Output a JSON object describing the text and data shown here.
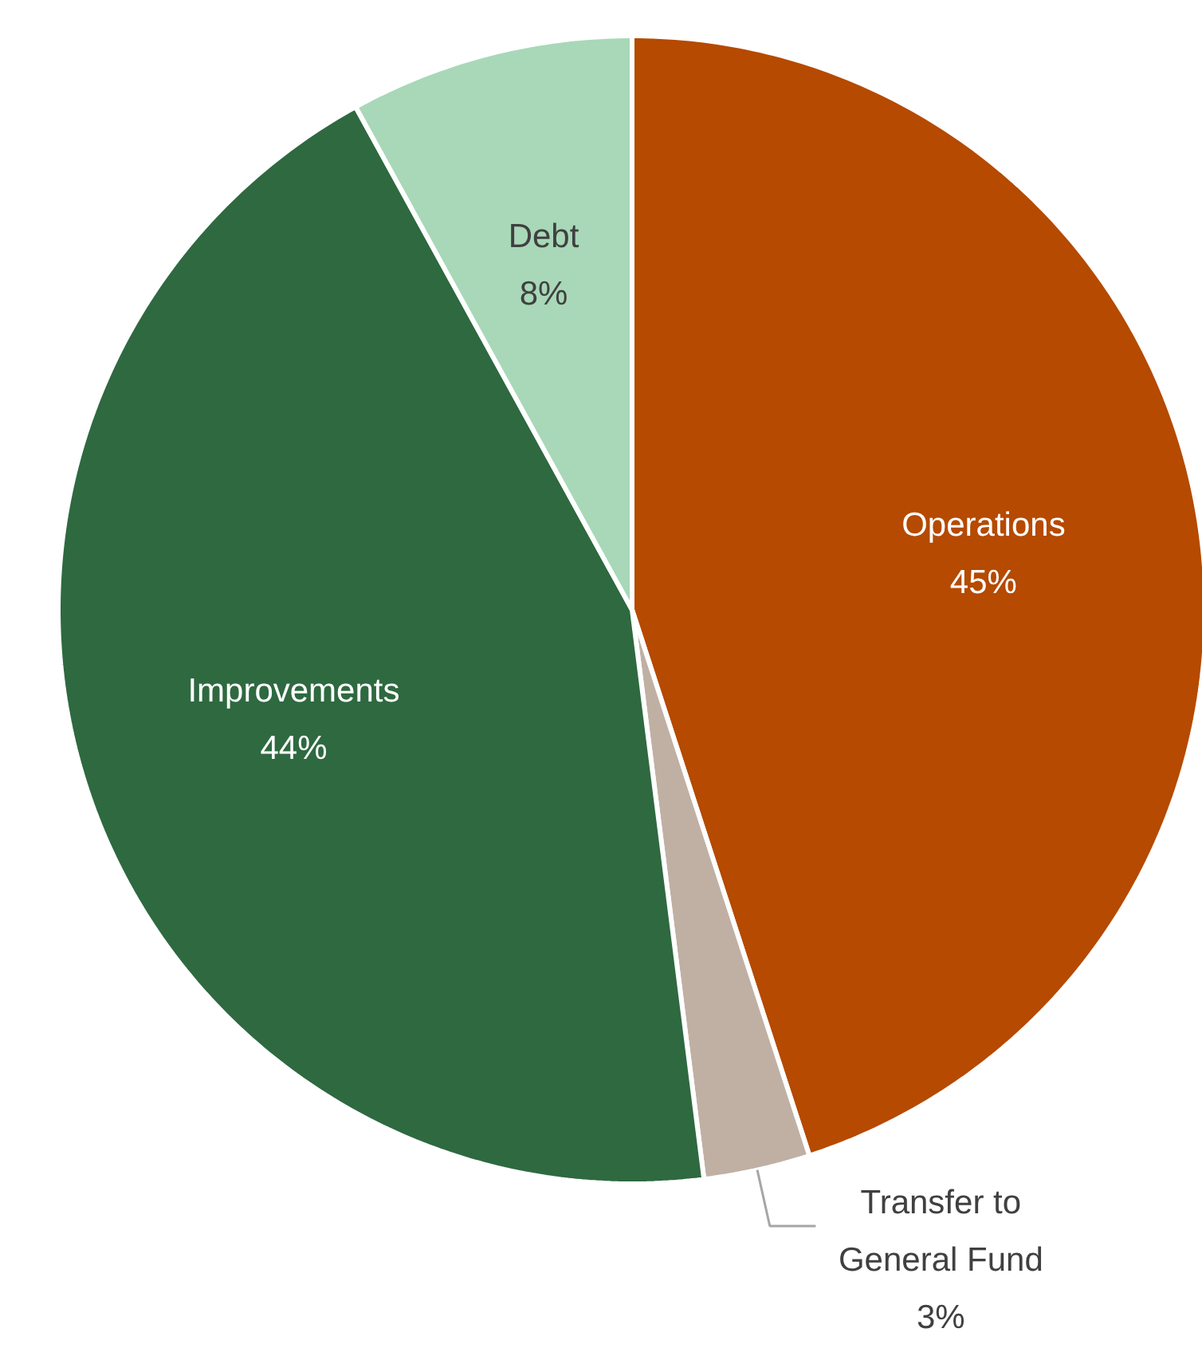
{
  "chart_data": {
    "type": "pie",
    "categories": [
      "Operations",
      "Transfer to General Fund",
      "Improvements",
      "Debt"
    ],
    "values": [
      45,
      3,
      44,
      8
    ],
    "value_labels": [
      "45%",
      "3%",
      "44%",
      "8%"
    ],
    "colors": [
      "#b54a00",
      "#c0b0a4",
      "#2e6940",
      "#a8d8b8"
    ]
  }
}
